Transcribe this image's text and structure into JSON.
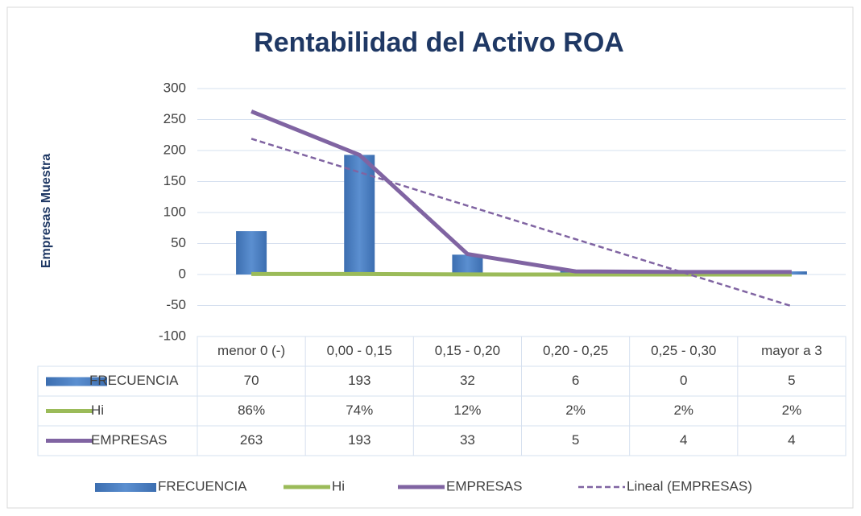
{
  "chart_data": {
    "type": "bar-line",
    "title": "Rentabilidad del Activo ROA",
    "y_label": "Empresas Muestra",
    "categories": [
      "menor 0 (-)",
      "0,00 - 0,15",
      "0,15 - 0,20",
      "0,20 - 0,25",
      "0,25 - 0,30",
      "mayor  a 3"
    ],
    "series": [
      {
        "name": "FRECUENCIA",
        "type": "bar",
        "color": "#4a7ebb",
        "values": [
          70,
          193,
          32,
          6,
          0,
          5
        ]
      },
      {
        "name": "Hi",
        "type": "line",
        "color": "#9bbb59",
        "values": [
          0.86,
          0.74,
          0.12,
          0.02,
          0.02,
          0.02
        ],
        "value_labels": [
          "86%",
          "74%",
          "12%",
          "2%",
          "2%",
          "2%"
        ]
      },
      {
        "name": "EMPRESAS",
        "type": "line",
        "color": "#8064a2",
        "values": [
          263,
          193,
          33,
          5,
          4,
          4
        ]
      },
      {
        "name": "Lineal (EMPRESAS)",
        "type": "trendline",
        "color": "#8064a2",
        "dashed": true,
        "values": [
          219,
          165,
          111,
          57,
          3,
          -51
        ]
      }
    ],
    "ylim": [
      -100,
      300
    ],
    "yticks": [
      -100,
      -50,
      0,
      50,
      100,
      150,
      200,
      250,
      300
    ],
    "grid": true,
    "data_table": true,
    "legend": "bottom"
  }
}
